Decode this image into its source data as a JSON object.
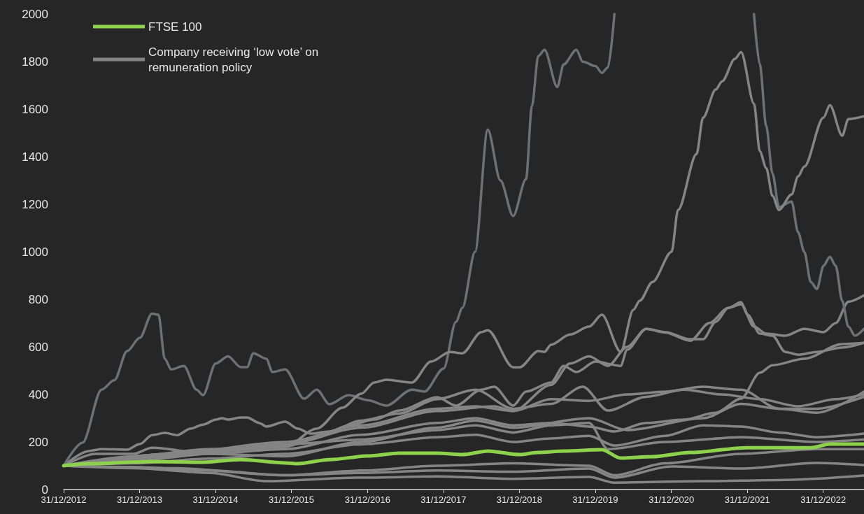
{
  "chart_data": {
    "type": "line",
    "marker": "none",
    "legend": "top left",
    "xlim": [
      "2012-12-31",
      "2023-07-15"
    ],
    "xticks": [
      {
        "value": "2012-12-31",
        "label": "31/12/2012"
      },
      {
        "value": "2013-12-31",
        "label": "31/12/2013"
      },
      {
        "value": "2014-12-31",
        "label": "31/12/2014"
      },
      {
        "value": "2015-12-31",
        "label": "31/12/2015"
      },
      {
        "value": "2016-12-31",
        "label": "31/12/2016"
      },
      {
        "value": "2017-12-31",
        "label": "31/12/2017"
      },
      {
        "value": "2018-12-31",
        "label": "31/12/2018"
      },
      {
        "value": "2019-12-31",
        "label": "31/12/2019"
      },
      {
        "value": "2020-12-31",
        "label": "31/12/2020"
      },
      {
        "value": "2021-12-31",
        "label": "31/12/2021"
      },
      {
        "value": "2022-12-31",
        "label": "31/12/2022"
      }
    ],
    "ylim": [
      0,
      2000
    ],
    "yticks": [
      0,
      200,
      400,
      600,
      800,
      1000,
      1200,
      1400,
      1600,
      1800,
      2000
    ],
    "series": [
      {
        "name": "FTSE 100",
        "color": "#8ed14d",
        "x": [
          "2012-12-31",
          "2013-05",
          "2014-03",
          "2014-11",
          "2015-05",
          "2015-12",
          "2016-02",
          "2016-07",
          "2017-01",
          "2017-06",
          "2017-12",
          "2018-04",
          "2018-08",
          "2019-01",
          "2019-04",
          "2019-08",
          "2020-02",
          "2020-05",
          "2020-10",
          "2021-04",
          "2022-01",
          "2022-11",
          "2023-02",
          "2023-07-15"
        ],
        "values": [
          100,
          109,
          118,
          115,
          126,
          112,
          109,
          126,
          141,
          153,
          153,
          147,
          162,
          147,
          156,
          162,
          168,
          132,
          138,
          156,
          176,
          176,
          191,
          191
        ]
      },
      {
        "name": "Company receiving ‘low vote’ on remuneration policy",
        "color": "#858585",
        "x": [
          "2012-12-31",
          "2014-06",
          "2015-06",
          "2015-12",
          "2016-05",
          "2016-09",
          "2016-12",
          "2017-02",
          "2017-04",
          "2017-08",
          "2017-11",
          "2018-02",
          "2018-04",
          "2018-07",
          "2018-08",
          "2018-12",
          "2019-01",
          "2019-04",
          "2019-05",
          "2019-06",
          "2019-09",
          "2019-12",
          "2020-02",
          "2020-05",
          "2020-07",
          "2020-08",
          "2020-10",
          "2021-01",
          "2021-02",
          "2021-05",
          "2021-06",
          "2021-08",
          "2021-09",
          "2021-11",
          "2021-12",
          "2022-02",
          "2022-03",
          "2022-04",
          "2022-05",
          "2022-06",
          "2022-08",
          "2022-09",
          "2022-10",
          "2023-01",
          "2023-02",
          "2023-04",
          "2023-05",
          "2023-07-15"
        ],
        "values": [
          100,
          150,
          170,
          180,
          256,
          344,
          403,
          450,
          462,
          450,
          538,
          579,
          573,
          662,
          670,
          514,
          514,
          582,
          579,
          609,
          652,
          685,
          735,
          579,
          756,
          794,
          873,
          1000,
          1176,
          1411,
          1564,
          1682,
          1717,
          1811,
          1840,
          1623,
          1423,
          1352,
          1235,
          1176,
          1241,
          1317,
          1358,
          1564,
          1617,
          1488,
          1558,
          1570
        ]
      },
      {
        "color": "#6d7174",
        "x": [
          "2012-12-31",
          "2013-04",
          "2013-07",
          "2013-09",
          "2013-11",
          "2014-01",
          "2014-03",
          "2014-04",
          "2014-05",
          "2014-06",
          "2014-08",
          "2014-10",
          "2014-11",
          "2015-01",
          "2015-03",
          "2015-05",
          "2015-06",
          "2015-07",
          "2015-09",
          "2015-10",
          "2015-12",
          "2016-03",
          "2016-05",
          "2016-07",
          "2016-10",
          "2017-01",
          "2017-04",
          "2017-08",
          "2017-10",
          "2018-01",
          "2018-03",
          "2018-04",
          "2018-06",
          "2018-08",
          "2018-10",
          "2018-12",
          "2019-02",
          "2019-03",
          "2019-04",
          "2019-05",
          "2019-07",
          "2019-08",
          "2019-10",
          "2019-11",
          "2020-01",
          "2020-02",
          "2020-03",
          "2020-04",
          "2021-01",
          "2022-02",
          "2022-03",
          "2022-04",
          "2022-05",
          "2022-06",
          "2022-08",
          "2022-09",
          "2022-10",
          "2022-11",
          "2022-12",
          "2023-01",
          "2023-02",
          "2023-03",
          "2023-04",
          "2023-05",
          "2023-06",
          "2023-07-15"
        ],
        "values": [
          100,
          197,
          420,
          460,
          582,
          638,
          740,
          735,
          550,
          505,
          520,
          420,
          397,
          530,
          560,
          515,
          515,
          573,
          550,
          494,
          505,
          382,
          420,
          359,
          397,
          376,
          353,
          420,
          412,
          509,
          705,
          764,
          1000,
          1514,
          1300,
          1150,
          1305,
          1611,
          1823,
          1849,
          1693,
          1788,
          1849,
          1799,
          1781,
          1752,
          1776,
          2000,
          null,
          2000,
          1788,
          1529,
          1329,
          1188,
          1211,
          1082,
          1000,
          873,
          843,
          941,
          979,
          941,
          794,
          685,
          647,
          676
        ]
      },
      {
        "color": "#858585",
        "x": [
          "2012-12-31",
          "2013-05",
          "2013-07",
          "2013-11",
          "2014-01",
          "2014-03",
          "2014-05",
          "2014-07",
          "2014-09",
          "2014-11",
          "2015-01",
          "2015-02",
          "2015-03",
          "2015-05",
          "2015-06",
          "2015-08",
          "2015-09",
          "2015-12",
          "2016-02",
          "2016-04",
          "2016-07",
          "2016-10",
          "2017-02",
          "2017-06",
          "2017-12",
          "2018-03",
          "2018-07",
          "2018-09",
          "2018-12",
          "2019-02",
          "2019-06",
          "2019-08",
          "2019-10",
          "2020-01",
          "2020-05",
          "2020-06",
          "2020-09",
          "2020-12",
          "2021-04",
          "2021-06",
          "2021-08",
          "2021-10",
          "2021-12",
          "2022-01",
          "2022-03",
          "2022-05",
          "2022-07",
          "2022-09",
          "2022-12",
          "2023-04",
          "2023-07-15"
        ],
        "values": [
          100,
          162,
          170,
          168,
          191,
          229,
          238,
          229,
          256,
          273,
          294,
          300,
          294,
          303,
          303,
          279,
          265,
          285,
          256,
          235,
          244,
          270,
          294,
          332,
          388,
          353,
          420,
          432,
          353,
          412,
          450,
          520,
          494,
          538,
          520,
          588,
          676,
          662,
          632,
          632,
          705,
          764,
          788,
          735,
          656,
          647,
          579,
          567,
          579,
          597,
          617
        ]
      },
      {
        "color": "#858585",
        "x": [
          "2012-12-31",
          "2014-06",
          "2015-12",
          "2016-12",
          "2017-12",
          "2018-09",
          "2018-12",
          "2019-06",
          "2019-09",
          "2019-12",
          "2020-03",
          "2020-06",
          "2020-09",
          "2020-12",
          "2021-04",
          "2021-07",
          "2021-10",
          "2021-12",
          "2022-02",
          "2022-04",
          "2022-07",
          "2022-10",
          "2023-01",
          "2023-03",
          "2023-05",
          "2023-07-15"
        ],
        "values": [
          100,
          140,
          190,
          260,
          330,
          350,
          330,
          440,
          530,
          560,
          520,
          600,
          676,
          660,
          626,
          700,
          764,
          779,
          685,
          656,
          647,
          676,
          662,
          700,
          790,
          817
        ]
      },
      {
        "color": "#858585",
        "x": [
          "2012-12-31",
          "2014-06",
          "2015-12",
          "2016-12",
          "2017-12",
          "2018-06",
          "2018-12",
          "2019-06",
          "2019-12",
          "2020-06",
          "2020-12",
          "2021-06",
          "2021-12",
          "2022-06",
          "2022-12",
          "2023-07-15"
        ],
        "values": [
          100,
          150,
          200,
          270,
          340,
          350,
          330,
          380,
          373,
          400,
          412,
          432,
          420,
          340,
          323,
          412
        ]
      },
      {
        "color": "#858585",
        "x": [
          "2012-12-31",
          "2013-12",
          "2014-12",
          "2015-12",
          "2016-06",
          "2016-12",
          "2017-06",
          "2017-12",
          "2018-06",
          "2018-12",
          "2019-06",
          "2019-11",
          "2020-03",
          "2020-09",
          "2021-03",
          "2021-09",
          "2022-03",
          "2022-09",
          "2023-03",
          "2023-07-15"
        ],
        "values": [
          100,
          130,
          160,
          180,
          230,
          290,
          320,
          380,
          420,
          340,
          360,
          432,
          332,
          390,
          420,
          400,
          380,
          350,
          380,
          400
        ]
      },
      {
        "color": "#858585",
        "x": [
          "2012-12-31",
          "2013-12",
          "2014-12",
          "2015-12",
          "2016-12",
          "2017-12",
          "2018-06",
          "2018-12",
          "2019-06",
          "2019-12",
          "2020-04",
          "2020-09",
          "2021-03",
          "2021-08",
          "2021-12",
          "2022-03",
          "2022-05",
          "2022-10",
          "2023-04",
          "2023-07-15"
        ],
        "values": [
          100,
          120,
          150,
          170,
          230,
          280,
          300,
          270,
          280,
          265,
          244,
          280,
          294,
          323,
          382,
          491,
          523,
          550,
          612,
          617
        ]
      },
      {
        "color": "#858585",
        "x": [
          "2012-12-31",
          "2013-12",
          "2014-12",
          "2015-12",
          "2016-12",
          "2017-12",
          "2018-06",
          "2018-12",
          "2019-06",
          "2019-12",
          "2020-04",
          "2020-12",
          "2021-06",
          "2021-12",
          "2022-06",
          "2022-12",
          "2023-07-15"
        ],
        "values": [
          100,
          110,
          130,
          150,
          190,
          220,
          230,
          200,
          215,
          226,
          185,
          226,
          270,
          265,
          240,
          220,
          235
        ]
      },
      {
        "color": "#858585",
        "x": [
          "2012-12-31",
          "2013-12",
          "2014-12",
          "2015-12",
          "2016-12",
          "2017-12",
          "2018-12",
          "2019-12",
          "2020-04",
          "2021-01",
          "2021-12",
          "2022-12",
          "2023-07-15"
        ],
        "values": [
          100,
          95,
          80,
          60,
          70,
          80,
          75,
          88,
          50,
          97,
          88,
          112,
          103
        ]
      },
      {
        "color": "#858585",
        "x": [
          "2012-12-31",
          "2013-12",
          "2014-12",
          "2015-09",
          "2016-12",
          "2017-12",
          "2018-12",
          "2019-12",
          "2020-04",
          "2021-06",
          "2022-06",
          "2023-07-15"
        ],
        "values": [
          100,
          90,
          70,
          35,
          50,
          55,
          45,
          53,
          29,
          35,
          40,
          59
        ]
      },
      {
        "color": "#858585",
        "x": [
          "2012-12-31",
          "2014-06",
          "2015-12",
          "2016-12",
          "2017-12",
          "2018-12",
          "2019-12",
          "2020-04",
          "2020-12",
          "2021-12",
          "2022-12",
          "2023-07-15"
        ],
        "values": [
          100,
          90,
          60,
          80,
          100,
          110,
          100,
          60,
          110,
          150,
          170,
          170
        ]
      },
      {
        "color": "#858585",
        "x": [
          "2012-12-31",
          "2013-12",
          "2014-12",
          "2015-12",
          "2016-12",
          "2017-12",
          "2018-06",
          "2018-12",
          "2019-06",
          "2019-12",
          "2020-03",
          "2020-12",
          "2021-12",
          "2022-12",
          "2023-07-15"
        ],
        "values": [
          100,
          140,
          170,
          190,
          210,
          250,
          270,
          240,
          270,
          280,
          170,
          200,
          220,
          200,
          210
        ]
      },
      {
        "color": "#858585",
        "x": [
          "2012-12-31",
          "2013-06",
          "2013-12",
          "2014-03",
          "2014-12",
          "2015-12",
          "2016-12",
          "2017-12",
          "2018-06",
          "2018-12",
          "2019-12",
          "2020-06",
          "2021-06",
          "2021-12",
          "2022-06",
          "2022-12",
          "2023-07-15"
        ],
        "values": [
          100,
          150,
          150,
          176,
          150,
          140,
          200,
          260,
          290,
          260,
          300,
          250,
          300,
          360,
          340,
          340,
          390
        ]
      }
    ]
  }
}
